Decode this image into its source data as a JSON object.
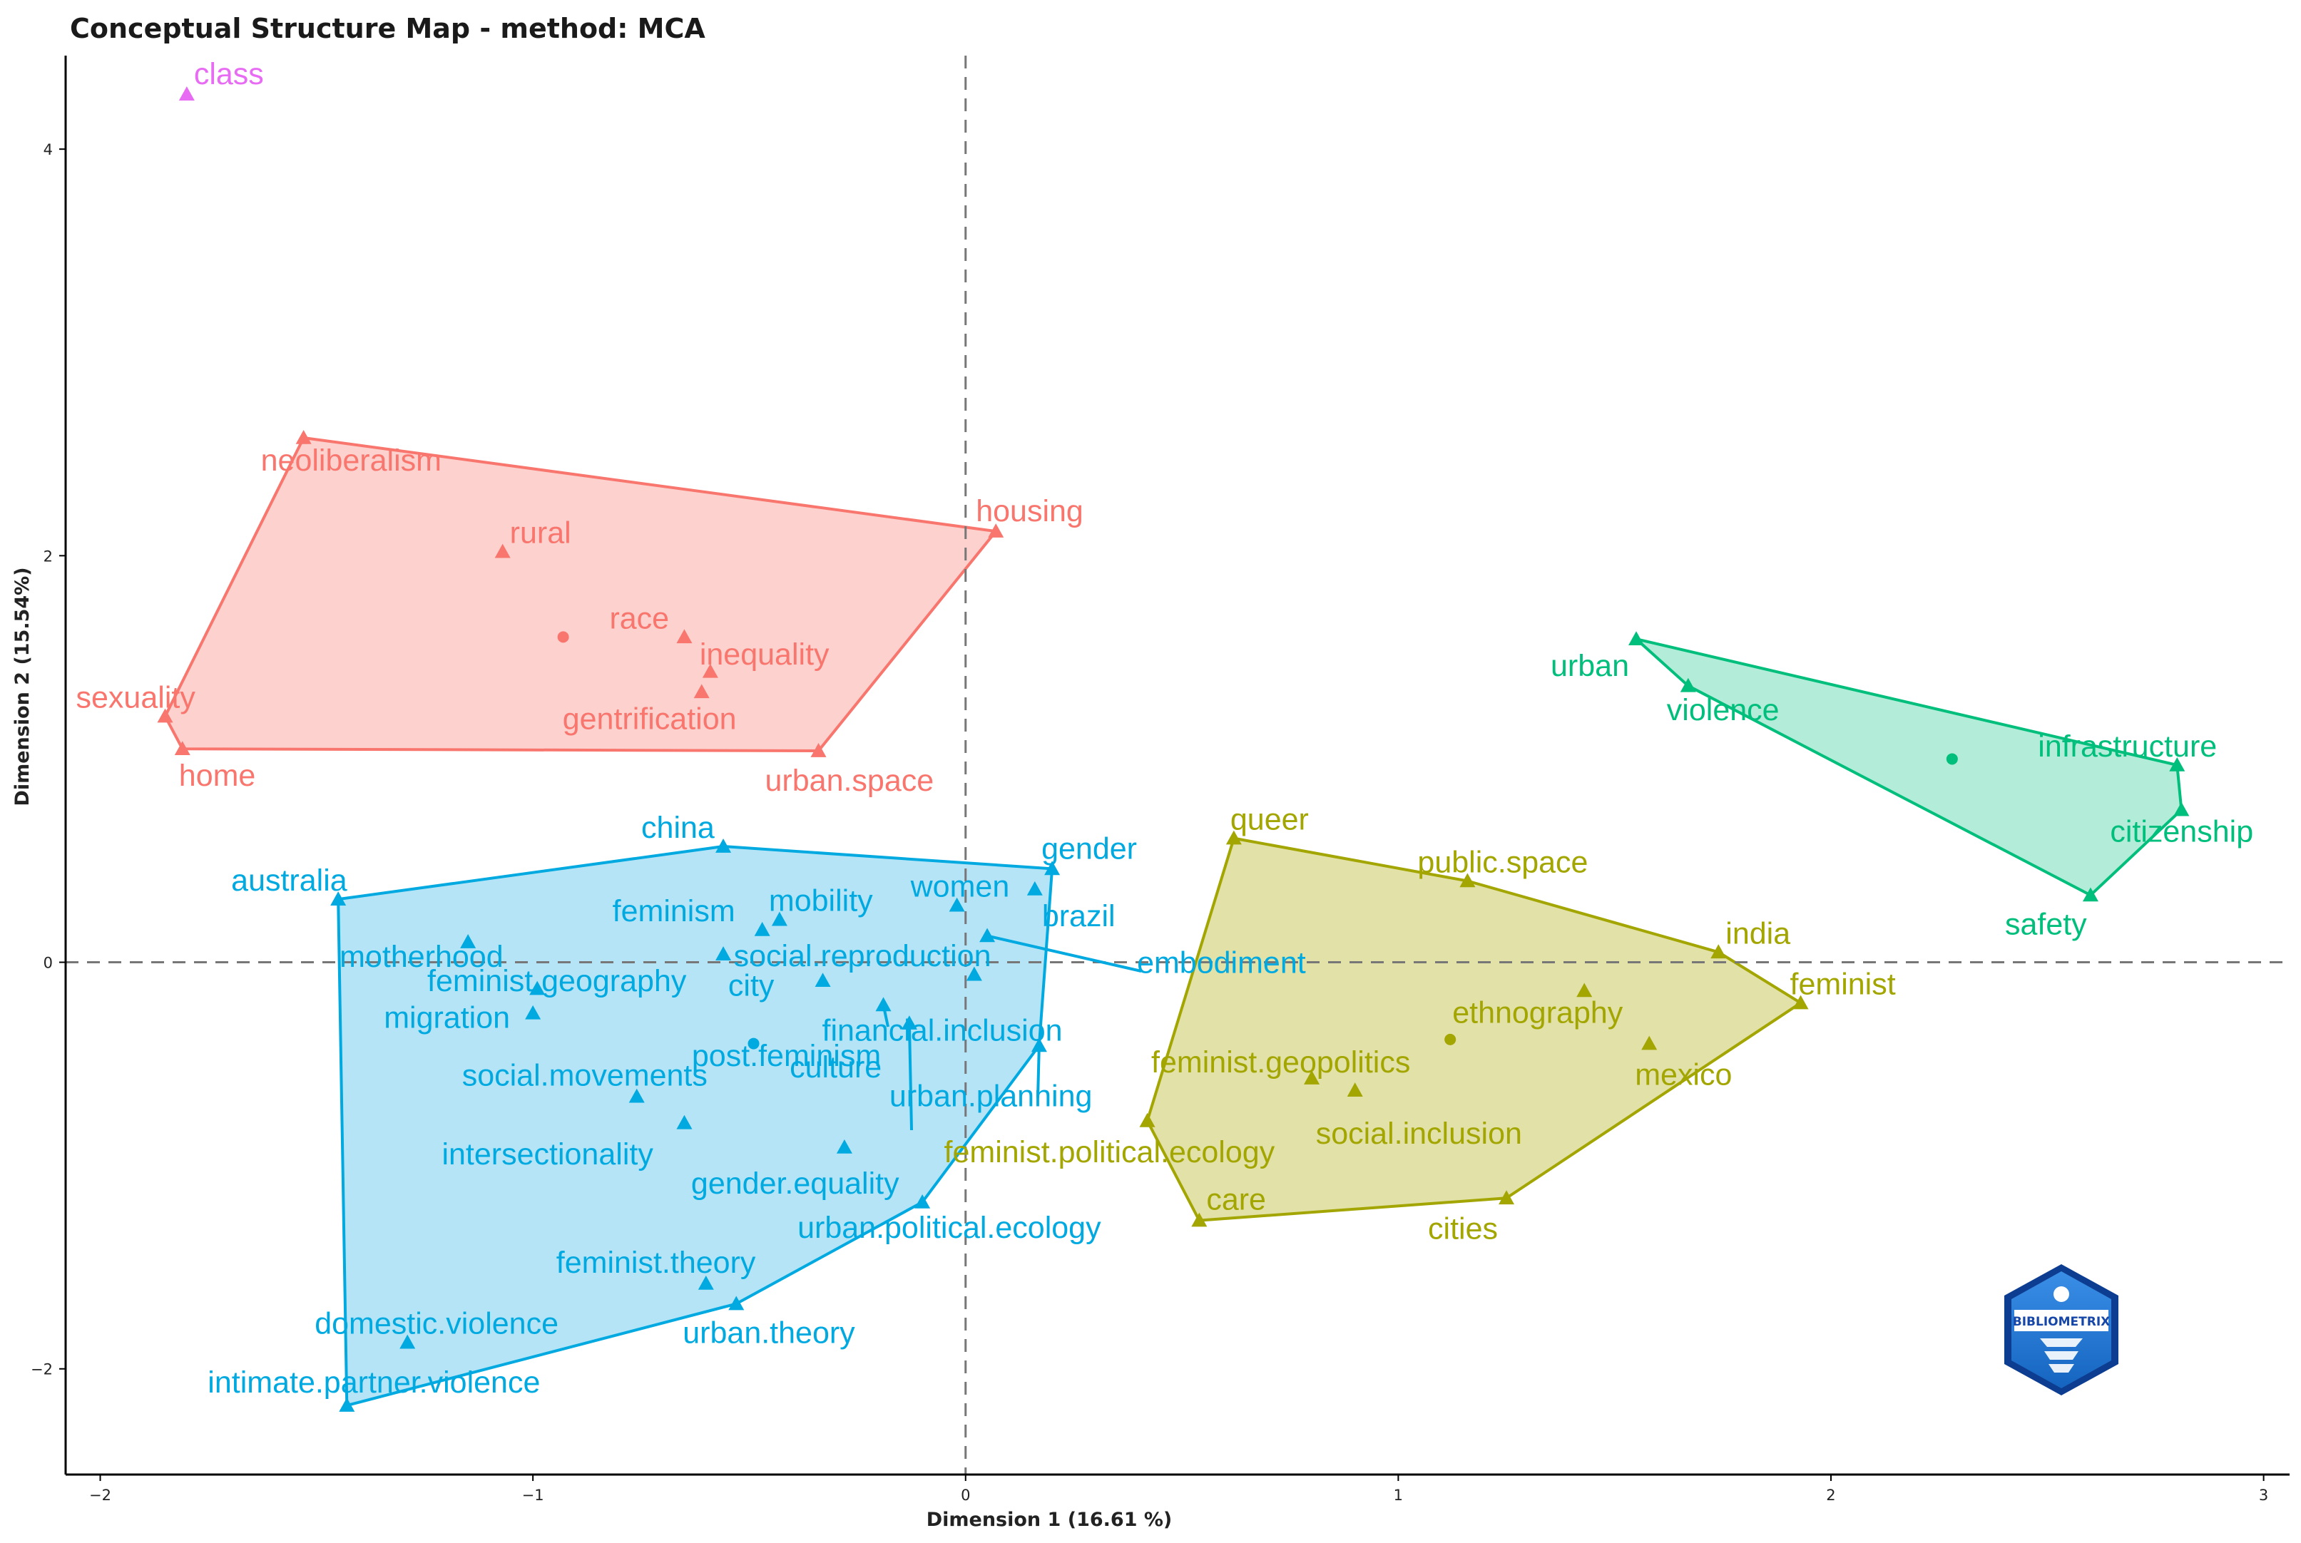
{
  "chart_data": {
    "type": "scatter",
    "title": "Conceptual Structure Map - method: MCA",
    "xlabel": "Dimension 1 (16.61 %)",
    "ylabel": "Dimension 2 (15.54%)",
    "xlim": [
      -2.08,
      3.06
    ],
    "ylim": [
      -2.52,
      4.46
    ],
    "xticks": [
      -2,
      -1,
      0,
      1,
      2,
      3
    ],
    "yticks": [
      -2,
      0,
      2,
      4
    ],
    "xtick_labels": [
      "−2",
      "−1",
      "0",
      "1",
      "2",
      "3"
    ],
    "ytick_labels": [
      "−2",
      "0",
      "2",
      "4"
    ],
    "reference_lines": {
      "x": 0,
      "y": 0,
      "style": "dashed"
    },
    "grid": false,
    "clusters": [
      {
        "id": "cluster-1",
        "color": "#F8766D",
        "fill": "#FBC9C6",
        "centroid": [
          -0.93,
          1.6
        ],
        "hull": [
          "neoliberalism",
          "housing",
          "urban.space",
          "home",
          "sexuality"
        ],
        "points": [
          {
            "label": "neoliberalism",
            "x": -1.53,
            "y": 2.58
          },
          {
            "label": "rural",
            "x": -1.07,
            "y": 2.02
          },
          {
            "label": "housing",
            "x": 0.07,
            "y": 2.12
          },
          {
            "label": "race",
            "x": -0.65,
            "y": 1.6
          },
          {
            "label": "inequality",
            "x": -0.59,
            "y": 1.43
          },
          {
            "label": "gentrification",
            "x": -0.61,
            "y": 1.33
          },
          {
            "label": "sexuality",
            "x": -1.85,
            "y": 1.21
          },
          {
            "label": "home",
            "x": -1.81,
            "y": 1.05
          },
          {
            "label": "urban.space",
            "x": -0.34,
            "y": 1.04
          }
        ]
      },
      {
        "id": "cluster-2",
        "color": "#00A9E0",
        "fill": "#A9DFF6",
        "centroid": [
          -0.49,
          -0.4
        ],
        "hull": [
          "china",
          "gender",
          "urban.planning",
          "urban.political.ecology",
          "urban.theory",
          "intimate.partner.violence",
          "australia"
        ],
        "points": [
          {
            "label": "china",
            "x": -0.56,
            "y": 0.57
          },
          {
            "label": "australia",
            "x": -1.45,
            "y": 0.31
          },
          {
            "label": "gender",
            "x": 0.2,
            "y": 0.46
          },
          {
            "label": "women",
            "x": -0.02,
            "y": 0.28
          },
          {
            "label": "brazil",
            "x": 0.16,
            "y": 0.36
          },
          {
            "label": "mobility",
            "x": -0.43,
            "y": 0.21
          },
          {
            "label": "feminism",
            "x": -0.47,
            "y": 0.16
          },
          {
            "label": "motherhood",
            "x": -1.15,
            "y": 0.1
          },
          {
            "label": "embodiment",
            "x": 0.05,
            "y": 0.13
          },
          {
            "label": "feminist.geography",
            "x": -0.56,
            "y": 0.04
          },
          {
            "label": "social.reproduction",
            "x": -0.33,
            "y": -0.09
          },
          {
            "label": "city",
            "x": 0.02,
            "y": -0.06
          },
          {
            "label": "financial.inclusion",
            "x": -0.19,
            "y": -0.21
          },
          {
            "label": "migration",
            "x": -0.99,
            "y": -0.13
          },
          {
            "label": "culture",
            "x": -1.0,
            "y": -0.25
          },
          {
            "label": "urban.planning",
            "x": 0.17,
            "y": -0.41
          },
          {
            "label": "post.feminism",
            "x": -0.13,
            "y": -0.3
          },
          {
            "label": "social.movements",
            "x": -0.76,
            "y": -0.66
          },
          {
            "label": "intersectionality",
            "x": -0.65,
            "y": -0.79
          },
          {
            "label": "gender.equality",
            "x": -0.28,
            "y": -0.91
          },
          {
            "label": "urban.political.ecology",
            "x": -0.1,
            "y": -1.18
          },
          {
            "label": "feminist.theory",
            "x": -0.6,
            "y": -1.58
          },
          {
            "label": "urban.theory",
            "x": -0.53,
            "y": -1.68
          },
          {
            "label": "domestic.violence",
            "x": -1.29,
            "y": -1.87
          },
          {
            "label": "intimate.partner.violence",
            "x": -1.43,
            "y": -2.18
          }
        ]
      },
      {
        "id": "cluster-3",
        "color": "#A3A500",
        "fill": "#DCDC99",
        "centroid": [
          1.12,
          -0.38
        ],
        "hull": [
          "queer",
          "public.space",
          "india",
          "feminist",
          "cities",
          "care",
          "feminist.political.ecology"
        ],
        "points": [
          {
            "label": "queer",
            "x": 0.62,
            "y": 0.61
          },
          {
            "label": "public.space",
            "x": 1.16,
            "y": 0.4
          },
          {
            "label": "india",
            "x": 1.74,
            "y": 0.05
          },
          {
            "label": "feminist",
            "x": 1.93,
            "y": -0.2
          },
          {
            "label": "ethnography",
            "x": 1.43,
            "y": -0.14
          },
          {
            "label": "mexico",
            "x": 1.58,
            "y": -0.4
          },
          {
            "label": "feminist.geopolitics",
            "x": 0.8,
            "y": -0.57
          },
          {
            "label": "social.inclusion",
            "x": 0.9,
            "y": -0.63
          },
          {
            "label": "feminist.political.ecology",
            "x": 0.42,
            "y": -0.78
          },
          {
            "label": "care",
            "x": 0.54,
            "y": -1.27
          },
          {
            "label": "cities",
            "x": 1.25,
            "y": -1.16
          }
        ]
      },
      {
        "id": "cluster-4",
        "color": "#00BE7C",
        "fill": "#A6E9D1",
        "centroid": [
          2.28,
          1.0
        ],
        "hull": [
          "urban",
          "infrastructure",
          "citizenship",
          "safety",
          "violence"
        ],
        "points": [
          {
            "label": "urban",
            "x": 1.55,
            "y": 1.59
          },
          {
            "label": "violence",
            "x": 1.67,
            "y": 1.36
          },
          {
            "label": "infrastructure",
            "x": 2.8,
            "y": 0.97
          },
          {
            "label": "citizenship",
            "x": 2.81,
            "y": 0.75
          },
          {
            "label": "safety",
            "x": 2.6,
            "y": 0.33
          }
        ]
      },
      {
        "id": "cluster-5",
        "color": "#E76BF3",
        "fill": "#F6C8FA",
        "centroid": [
          -1.8,
          4.27
        ],
        "hull": [],
        "points": [
          {
            "label": "class",
            "x": -1.8,
            "y": 4.27
          }
        ]
      }
    ]
  },
  "logo": {
    "text": "BIBLIOMETRIX",
    "icon": "bibliometrix-logo-icon"
  }
}
